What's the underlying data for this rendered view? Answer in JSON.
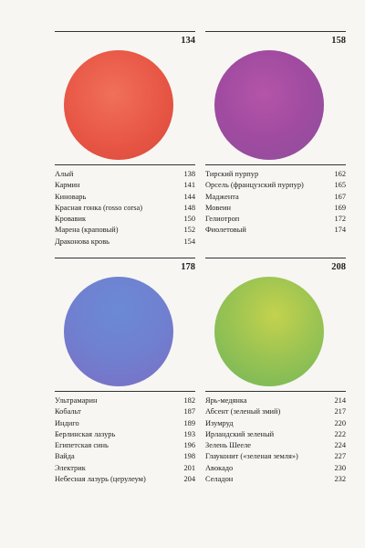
{
  "panels": [
    {
      "page": "134",
      "color": "#ea5a48",
      "entries": [
        {
          "name": "Алый",
          "page": "138"
        },
        {
          "name": "Кармин",
          "page": "141"
        },
        {
          "name": "Киноварь",
          "page": "144"
        },
        {
          "name": "Красная гонка (rosso corsa)",
          "page": "148"
        },
        {
          "name": "Кровавик",
          "page": "150"
        },
        {
          "name": "Марена (краповый)",
          "page": "152"
        },
        {
          "name": "Драконова кровь",
          "page": "154"
        }
      ]
    },
    {
      "page": "158",
      "color": "#a24aa0",
      "entries": [
        {
          "name": "Тирский пурпур",
          "page": "162"
        },
        {
          "name": "Орсель (французский пурпур)",
          "page": "165"
        },
        {
          "name": "Маджента",
          "page": "167"
        },
        {
          "name": "Мовеин",
          "page": "169"
        },
        {
          "name": "Гелиотроп",
          "page": "172"
        },
        {
          "name": "Фиолетовый",
          "page": "174"
        }
      ]
    },
    {
      "page": "178",
      "color": "#6f84d2",
      "entries": [
        {
          "name": "Ультрамарин",
          "page": "182"
        },
        {
          "name": "Кобальт",
          "page": "187"
        },
        {
          "name": "Индиго",
          "page": "189"
        },
        {
          "name": "Берлинская лазурь",
          "page": "193"
        },
        {
          "name": "Египетская синь",
          "page": "196"
        },
        {
          "name": "Вайда",
          "page": "198"
        },
        {
          "name": "Электрик",
          "page": "201"
        },
        {
          "name": "Небесная лазурь (церулеум)",
          "page": "204"
        }
      ]
    },
    {
      "page": "208",
      "color": "#9cc452",
      "entries": [
        {
          "name": "Ярь-медянка",
          "page": "214"
        },
        {
          "name": "Абсент (зеленый змий)",
          "page": "217"
        },
        {
          "name": "Изумруд",
          "page": "220"
        },
        {
          "name": "Ирландский зеленый",
          "page": "222"
        },
        {
          "name": "Зелень Шееле",
          "page": "224"
        },
        {
          "name": "Глауконит («зеленая земля»)",
          "page": "227"
        },
        {
          "name": "Авокадо",
          "page": "230"
        },
        {
          "name": "Селадон",
          "page": "232"
        }
      ]
    }
  ]
}
